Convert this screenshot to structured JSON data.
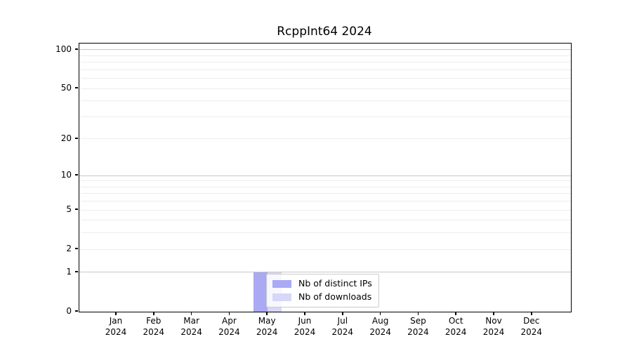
{
  "figure": {
    "title": "RcppInt64 2024"
  },
  "chart_data": {
    "type": "bar",
    "title": "RcppInt64 2024",
    "yscale": "log1p",
    "ylim": [
      0,
      112
    ],
    "grid": true,
    "legend_position": "lower-center-left-inside",
    "year": "2024",
    "months": [
      "Jan",
      "Feb",
      "Mar",
      "Apr",
      "May",
      "Jun",
      "Jul",
      "Aug",
      "Sep",
      "Oct",
      "Nov",
      "Dec"
    ],
    "yticks": [
      0,
      1,
      2,
      5,
      10,
      20,
      50,
      100
    ],
    "major_gridlines": [
      1,
      10,
      100
    ],
    "minor_gridlines": [
      2,
      5,
      20,
      50,
      3,
      4,
      6,
      7,
      8,
      9,
      30,
      40,
      60,
      70,
      80,
      90
    ],
    "series": [
      {
        "name": "Nb of distinct IPs",
        "color": "#a9a9f4",
        "values": [
          0,
          0,
          0,
          0,
          1,
          0,
          0,
          0,
          0,
          0,
          0,
          0
        ]
      },
      {
        "name": "Nb of downloads",
        "color": "#d7d7f8",
        "values": [
          0,
          0,
          0,
          0,
          1,
          0,
          0,
          0,
          0,
          0,
          0,
          0
        ]
      }
    ]
  },
  "colors": {
    "spine": "#000000",
    "grid_major": "#c6c6c6",
    "grid_minor": "#ededed",
    "legend_border": "#cbcbcb",
    "text": "#000000"
  }
}
